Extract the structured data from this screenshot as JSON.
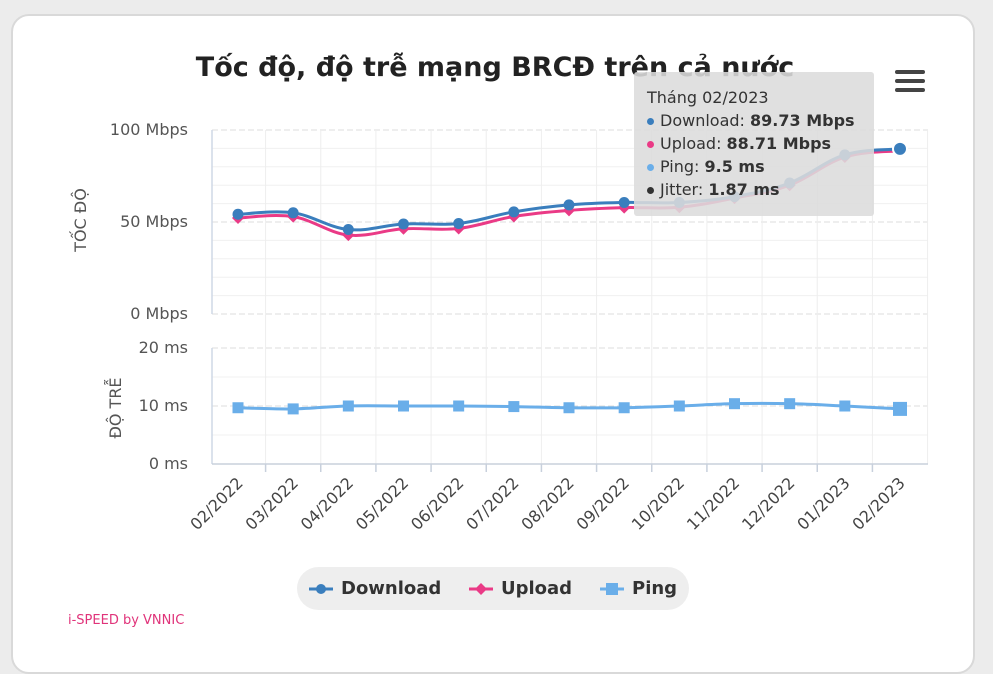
{
  "colors": {
    "download": "#3a7ebd",
    "upload": "#ea3a86",
    "ping": "#6aaee9",
    "jitter": "#333333"
  },
  "chart_data": {
    "type": "line",
    "title": "Tốc độ, độ trễ mạng BRCĐ trên cả nước",
    "categories": [
      "02/2022",
      "03/2022",
      "04/2022",
      "05/2022",
      "06/2022",
      "07/2022",
      "08/2022",
      "09/2022",
      "10/2022",
      "11/2022",
      "12/2022",
      "01/2023",
      "02/2023"
    ],
    "speed_axis": {
      "label": "TỐC ĐỘ",
      "range": [
        0,
        100
      ],
      "ticks": [
        "100 Mbps",
        "50 Mbps",
        "0 Mbps"
      ],
      "tick_values": [
        100,
        50,
        0
      ]
    },
    "latency_axis": {
      "label": "ĐỘ TRỄ",
      "range": [
        0,
        20
      ],
      "ticks": [
        "20 ms",
        "10 ms",
        "0 ms"
      ],
      "tick_values": [
        20,
        10,
        0
      ]
    },
    "series": [
      {
        "name": "Download",
        "axis": "speed",
        "marker": "circle",
        "values": [
          54.2,
          55.0,
          45.9,
          48.9,
          49.2,
          55.5,
          59.3,
          60.6,
          60.6,
          63.8,
          71.2,
          86.5,
          89.73
        ]
      },
      {
        "name": "Upload",
        "axis": "speed",
        "marker": "diamond",
        "values": [
          52.2,
          52.9,
          42.9,
          46.3,
          46.5,
          53.0,
          56.3,
          57.8,
          58.0,
          63.0,
          70.0,
          85.3,
          88.71
        ]
      },
      {
        "name": "Ping",
        "axis": "latency",
        "marker": "square",
        "values": [
          9.7,
          9.5,
          10.0,
          10.0,
          10.0,
          9.9,
          9.7,
          9.7,
          10.0,
          10.4,
          10.4,
          10.0,
          9.5
        ]
      }
    ],
    "legend_placement": "bottom-center",
    "grid": true
  },
  "tooltip": {
    "header": "Tháng 02/2023",
    "rows": [
      {
        "label": "Download: ",
        "value": "89.73 Mbps"
      },
      {
        "label": "Upload: ",
        "value": "88.71 Mbps"
      },
      {
        "label": "Ping: ",
        "value": "9.5 ms"
      },
      {
        "label": "Jitter: ",
        "value": "1.87 ms"
      }
    ]
  },
  "legend": {
    "items": [
      "Download",
      "Upload",
      "Ping"
    ]
  },
  "credit": "i-SPEED by VNNIC"
}
